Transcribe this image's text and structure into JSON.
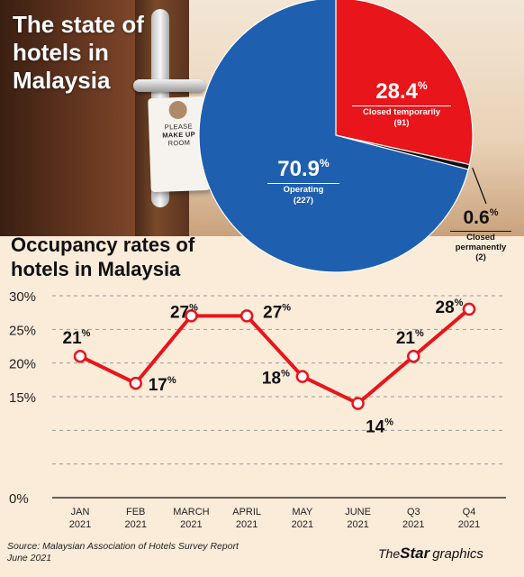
{
  "header": {
    "title_lines": [
      "The state of",
      "hotels in",
      "Malaysia"
    ]
  },
  "photo": {
    "door_tag_lines": [
      "PLEASE",
      "MAKE UP",
      "ROOM"
    ]
  },
  "chart_data": [
    {
      "type": "pie",
      "slices": [
        {
          "label": "Operating",
          "value": 70.9,
          "value_label": "70.9",
          "count": "(227)",
          "color": "#1f5fb0"
        },
        {
          "label": "Closed temporarily",
          "value": 28.4,
          "value_label": "28.4",
          "count": "(91)",
          "color": "#e8151b"
        },
        {
          "label": "Closed permanently",
          "value": 0.6,
          "value_label": "0.6",
          "count": "(2)",
          "color": "#111111"
        }
      ],
      "unit": "%"
    },
    {
      "type": "line",
      "title_lines": [
        "Occupancy rates of",
        "hotels in Malaysia"
      ],
      "categories": [
        {
          "line1": "JAN",
          "line2": "2021"
        },
        {
          "line1": "FEB",
          "line2": "2021"
        },
        {
          "line1": "MARCH",
          "line2": "2021"
        },
        {
          "line1": "APRIL",
          "line2": "2021"
        },
        {
          "line1": "MAY",
          "line2": "2021"
        },
        {
          "line1": "JUNE",
          "line2": "2021"
        },
        {
          "line1": "Q3",
          "line2": "2021"
        },
        {
          "line1": "Q4",
          "line2": "2021"
        }
      ],
      "values": [
        21,
        17,
        27,
        27,
        18,
        14,
        21,
        28
      ],
      "data_labels": [
        "21",
        "17",
        "27",
        "27",
        "18",
        "14",
        "21",
        "28"
      ],
      "label_positions": [
        "above",
        "right",
        "above",
        "right",
        "left",
        "below",
        "above",
        "above"
      ],
      "unit": "%",
      "ylim": [
        0,
        30
      ],
      "yticks": [
        0,
        5,
        10,
        15,
        20,
        25,
        30
      ],
      "ytick_labels": [
        "0%",
        "15%",
        "20%",
        "25%",
        "30%"
      ],
      "ytick_label_values": [
        0,
        15,
        20,
        25,
        30
      ],
      "grid": "horizontal-dashed",
      "line_color": "#e8151b"
    }
  ],
  "footer": {
    "source_lines": [
      "Source: Malaysian Association of Hotels Survey Report",
      "June 2021"
    ],
    "credit_the": "The",
    "credit_star": "Star",
    "credit_graphics": "graphics"
  }
}
